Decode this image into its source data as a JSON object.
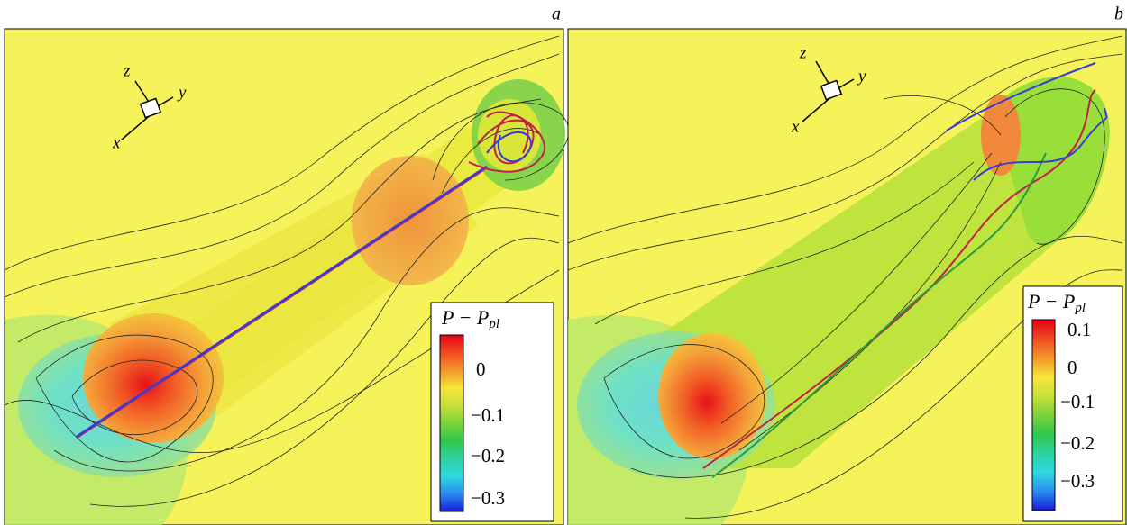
{
  "panels": [
    {
      "label": "a",
      "axes": {
        "x": "x",
        "y": "y",
        "z": "z"
      },
      "colorbar": {
        "title": "P − P",
        "title_subscript": "pl",
        "labels": [
          "0",
          "−0.1",
          "−0.2",
          "−0.3"
        ]
      }
    },
    {
      "label": "b",
      "axes": {
        "x": "x",
        "y": "y",
        "z": "z"
      },
      "colorbar": {
        "title": "P − P",
        "title_subscript": "pl",
        "labels": [
          "0.1",
          "0",
          "−0.1",
          "−0.2",
          "−0.3"
        ]
      }
    }
  ]
}
